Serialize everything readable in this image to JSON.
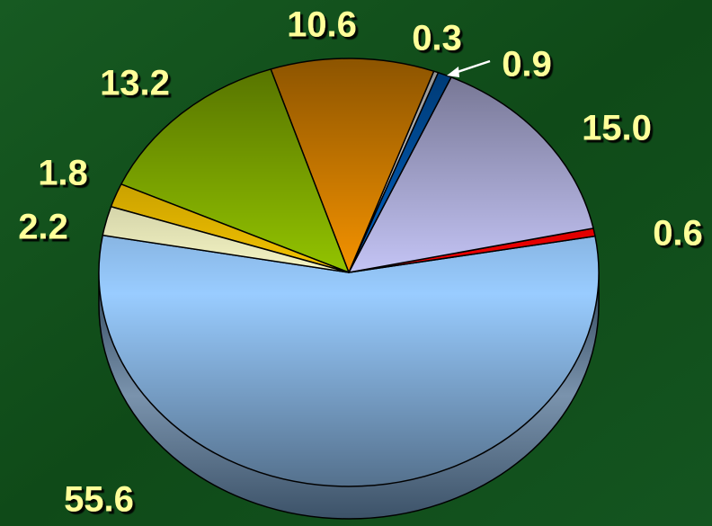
{
  "chart_data": {
    "type": "pie",
    "values": [
      55.6,
      0.6,
      15.0,
      0.9,
      0.3,
      10.6,
      13.2,
      1.8,
      2.2
    ],
    "value_labels": [
      "55.6",
      "0.6",
      "15.0",
      "0.9",
      "0.3",
      "10.6",
      "13.2",
      "1.8",
      "2.2"
    ],
    "colors": [
      "#99ccff",
      "#ff0000",
      "#ccccff",
      "#0066cc",
      "#ffffff",
      "#ff9900",
      "#99cc00",
      "#ffcc00",
      "#ffffcc"
    ]
  }
}
